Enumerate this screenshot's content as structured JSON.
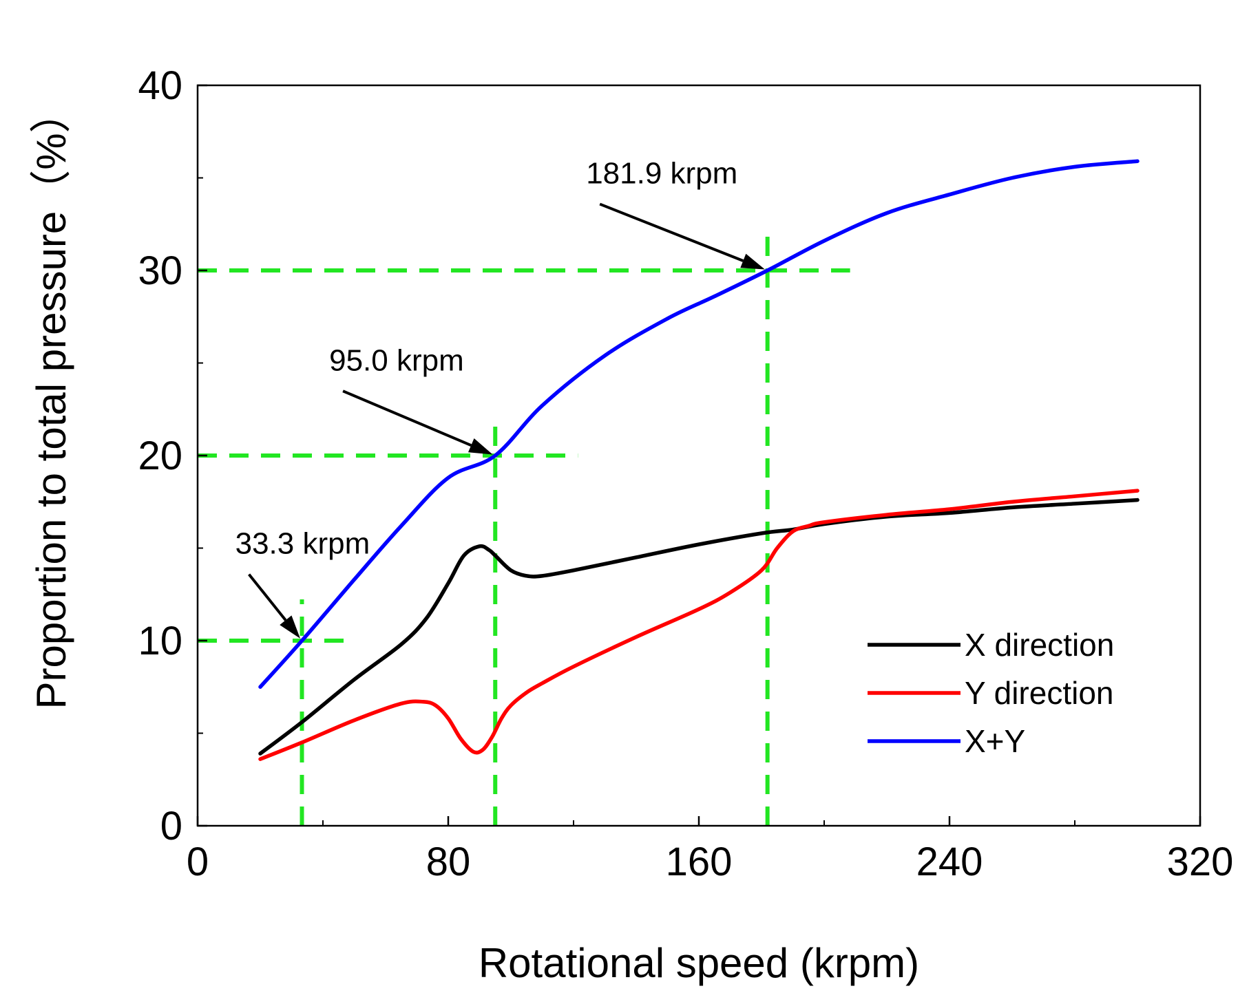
{
  "chart_data": {
    "type": "line",
    "title": "",
    "xlabel": "Rotational speed (krpm)",
    "ylabel": "Proportion to total pressure（%）",
    "xlim": [
      0,
      320
    ],
    "ylim": [
      0,
      40
    ],
    "xticks": [
      0,
      80,
      160,
      240,
      320
    ],
    "yticks": [
      0,
      10,
      20,
      30,
      40
    ],
    "grid": false,
    "legend_position": "bottom-right",
    "colors": {
      "x": "#000000",
      "y": "#ff0000",
      "xy": "#0000ff",
      "guide": "#22e622",
      "arrow": "#000000"
    },
    "series": [
      {
        "name": "X direction",
        "color": "#000000",
        "x": [
          20,
          33.3,
          50,
          65,
          73,
          80,
          85,
          90,
          93,
          95,
          100,
          105,
          110,
          120,
          140,
          160,
          180,
          190,
          200,
          220,
          240,
          260,
          280,
          300
        ],
        "y": [
          3.9,
          5.6,
          7.9,
          9.8,
          11.2,
          13.1,
          14.6,
          15.1,
          14.9,
          14.6,
          13.8,
          13.5,
          13.5,
          13.8,
          14.5,
          15.2,
          15.8,
          16.0,
          16.3,
          16.7,
          16.9,
          17.2,
          17.4,
          17.6
        ]
      },
      {
        "name": "Y direction",
        "color": "#ff0000",
        "x": [
          20,
          33.3,
          50,
          65,
          72,
          76,
          80,
          84,
          88,
          91,
          94,
          97,
          100,
          105,
          110,
          120,
          140,
          160,
          170,
          180,
          185,
          190,
          195,
          200,
          220,
          240,
          260,
          280,
          300
        ],
        "y": [
          3.6,
          4.5,
          5.7,
          6.6,
          6.7,
          6.5,
          5.8,
          4.7,
          4.0,
          4.1,
          4.8,
          5.8,
          6.5,
          7.2,
          7.7,
          8.6,
          10.2,
          11.7,
          12.6,
          13.8,
          15.0,
          15.9,
          16.2,
          16.4,
          16.8,
          17.1,
          17.5,
          17.8,
          18.1
        ]
      },
      {
        "name": "X+Y",
        "color": "#0000ff",
        "x": [
          20,
          33.3,
          50,
          65,
          80,
          95,
          110,
          130,
          150,
          165,
          181.9,
          200,
          220,
          240,
          260,
          280,
          300
        ],
        "y": [
          7.5,
          10.0,
          13.3,
          16.2,
          18.8,
          20.0,
          22.7,
          25.4,
          27.4,
          28.6,
          30.0,
          31.6,
          33.1,
          34.1,
          35.0,
          35.6,
          35.9
        ]
      }
    ],
    "reference_lines": [
      {
        "x": 33.3,
        "y": 10,
        "label": "33.3 krpm"
      },
      {
        "x": 95.0,
        "y": 20,
        "label": "95.0 krpm"
      },
      {
        "x": 181.9,
        "y": 30,
        "label": "181.9 krpm"
      }
    ],
    "annotations": [
      {
        "text": "33.3 krpm",
        "target_x": 33.3,
        "target_y": 10,
        "text_x": 12,
        "text_y": 14.7
      },
      {
        "text": "95.0 krpm",
        "target_x": 95.0,
        "target_y": 20,
        "text_x": 42,
        "text_y": 24.6
      },
      {
        "text": "181.9 krpm",
        "target_x": 181.9,
        "target_y": 30,
        "text_x": 124,
        "text_y": 34.7
      }
    ]
  }
}
